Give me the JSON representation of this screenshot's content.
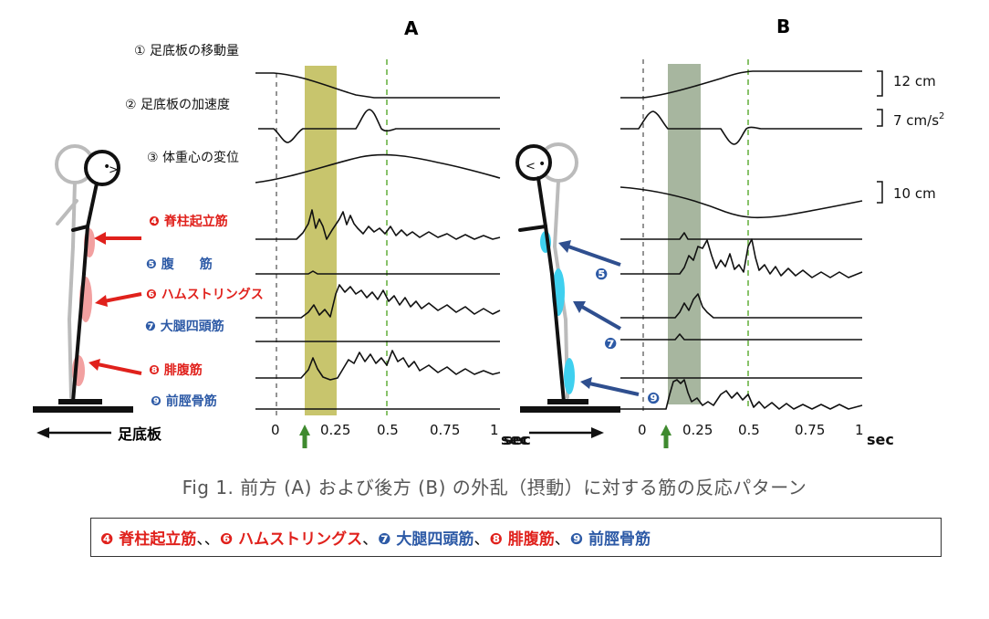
{
  "panels": {
    "a": "A",
    "b": "B"
  },
  "labels": {
    "l1": "① 足底板の移動量",
    "l2": "② 足底板の加速度",
    "l3": "③ 体重心の変位",
    "m4": "❹ 脊柱起立筋",
    "m5": "❺ 腹　　筋",
    "m6": "❻ ハムストリングス",
    "m7": "❼ 大腿四頭筋",
    "m8": "❽ 腓腹筋",
    "m9": "❾ 前脛骨筋"
  },
  "badges": {
    "b5": "❺",
    "b7": "❼",
    "b9": "❾"
  },
  "scales": {
    "s1": "12 cm",
    "s2": "7 cm/s",
    "s2sup": "2",
    "s3": "10 cm"
  },
  "platform_label": "足底板",
  "ticks": [
    "0",
    "0.25",
    "0.5",
    "0.75",
    "1"
  ],
  "unit": "sec",
  "colors": {
    "red": "#e0211c",
    "blue": "#2d5aa6",
    "navy": "#2f4f8f",
    "band_a": "#b5b23c",
    "band_b": "#5e7a50",
    "green_dash": "#7cbb5a",
    "arrow_green": "#3f8a2f",
    "muscle_red": "#f2a0a0",
    "muscle_cyan": "#3fd0ef"
  },
  "caption": "Fig 1. 前方 (A) および後方 (B) の外乱（摂動）に対する筋の反応パターン",
  "legend": [
    {
      "text": "❹ 脊柱起立筋",
      "color": "red"
    },
    {
      "text": "、、",
      "color": "sep"
    },
    {
      "text": "❻ ハムストリングス",
      "color": "red"
    },
    {
      "text": "、",
      "color": "sep"
    },
    {
      "text": "❼ 大腿四頭筋",
      "color": "blue"
    },
    {
      "text": "、",
      "color": "sep"
    },
    {
      "text": "❽ 腓腹筋",
      "color": "red"
    },
    {
      "text": "、",
      "color": "sep"
    },
    {
      "text": "❾ 前脛骨筋",
      "color": "blue"
    }
  ]
}
